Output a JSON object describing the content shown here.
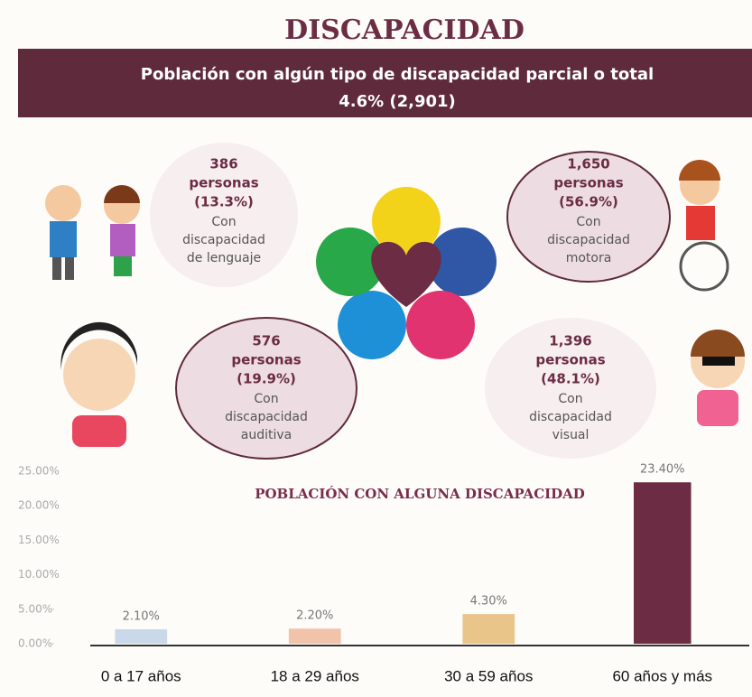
{
  "header": {
    "title": "DISCAPACIDAD",
    "subtitle": "Población con algún tipo de discapacidad parcial o total",
    "total": "4.6% (2,901)"
  },
  "callouts": [
    {
      "count": "386",
      "unit": "personas",
      "percent": "(13.3%)",
      "lines": [
        "Con",
        "discapacidad",
        "de lenguaje"
      ]
    },
    {
      "count": "1,650",
      "unit": "personas",
      "percent": "(56.9%)",
      "lines": [
        "Con",
        "discapacidad",
        "motora"
      ]
    },
    {
      "count": "576",
      "unit": "personas",
      "percent": "(19.9%)",
      "lines": [
        "Con",
        "discapacidad",
        "auditiva"
      ]
    },
    {
      "count": "1,396",
      "unit": "personas",
      "percent": "(48.1%)",
      "lines": [
        "Con",
        "discapacidad",
        "visual"
      ]
    }
  ],
  "chart_data": {
    "type": "bar",
    "title": "POBLACIÓN CON ALGUNA DISCAPACIDAD",
    "categories": [
      "0 a 17 años",
      "18 a 29 años",
      "30 a 59 años",
      "60 años y más"
    ],
    "values": [
      2.1,
      2.2,
      4.3,
      23.4
    ],
    "value_labels": [
      "2.10%",
      "2.20%",
      "4.30%",
      "23.40%"
    ],
    "colors": [
      "#c9d9ea",
      "#f2c3ab",
      "#e9c58a",
      "#6b2c44"
    ],
    "ylim": [
      0,
      25
    ],
    "yticks": [
      {
        "value": 0,
        "label": "0.00%"
      },
      {
        "value": 5,
        "label": "5.00%"
      },
      {
        "value": 10,
        "label": "10.00%"
      },
      {
        "value": 15,
        "label": "15.00%"
      },
      {
        "value": 20,
        "label": "20.00%"
      },
      {
        "value": 25,
        "label": "25.00%"
      }
    ]
  }
}
